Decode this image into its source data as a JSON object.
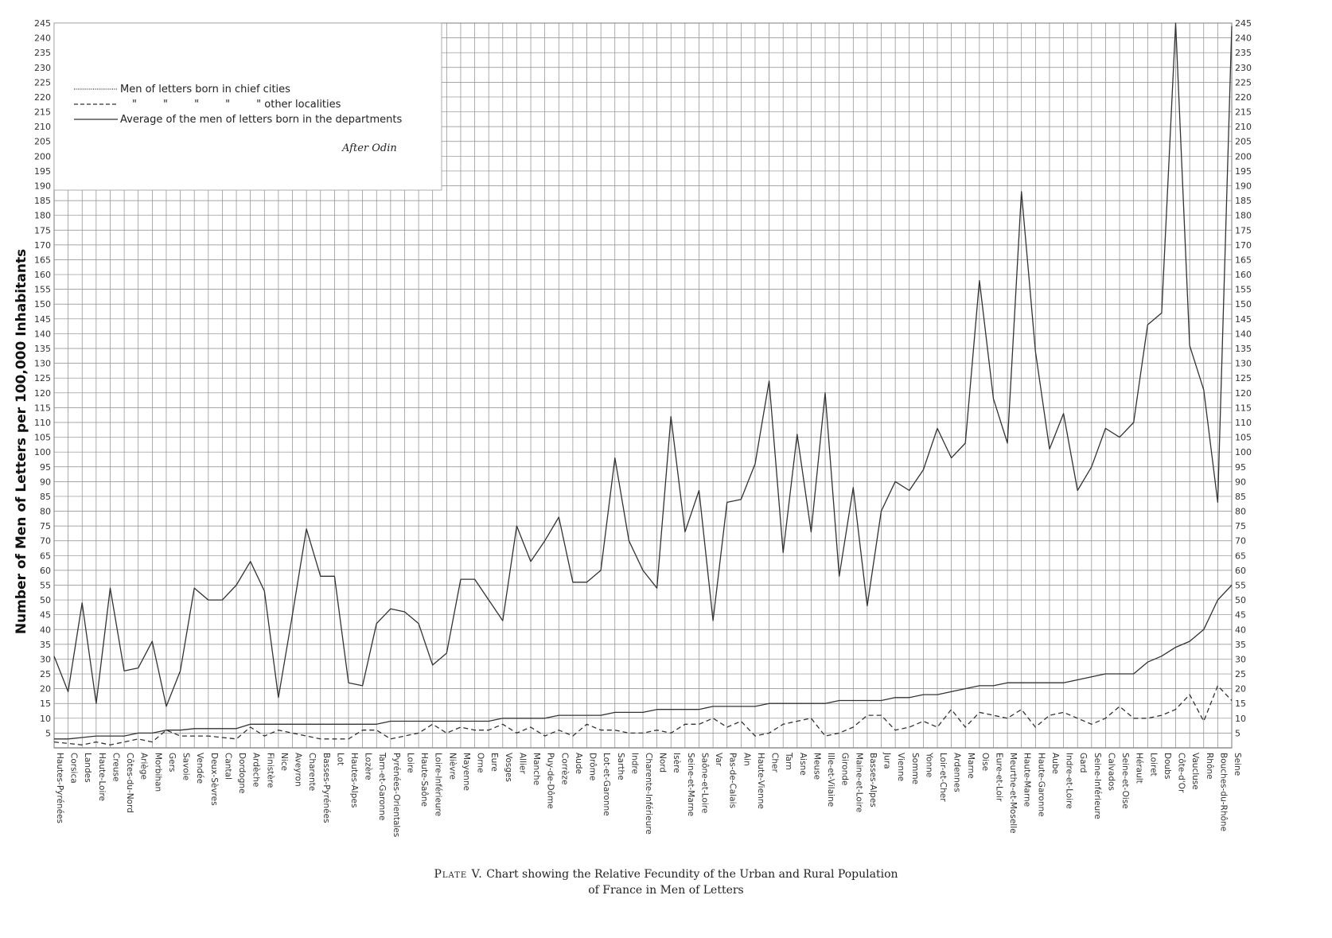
{
  "chart_data": {
    "type": "line",
    "ylabel": "Number of Men of Letters per 100,000 Inhabitants",
    "xlabel": "",
    "ylim": [
      0,
      245
    ],
    "yticks": [
      5,
      10,
      15,
      20,
      25,
      30,
      35,
      40,
      45,
      50,
      55,
      60,
      65,
      70,
      75,
      80,
      85,
      90,
      95,
      100,
      105,
      110,
      115,
      120,
      125,
      130,
      135,
      140,
      145,
      150,
      155,
      160,
      165,
      170,
      175,
      180,
      185,
      190,
      195,
      200,
      205,
      210,
      215,
      220,
      225,
      230,
      235,
      240,
      245
    ],
    "grid": true,
    "legend_position": "top-left",
    "annotation": "After Odin",
    "categories": [
      "Hautes-Pyrénées",
      "Corsica",
      "Landes",
      "Haute-Loire",
      "Creuse",
      "Côtes-du-Nord",
      "Ariège",
      "Morbihan",
      "Gers",
      "Savoie",
      "Vendée",
      "Deux-Sèvres",
      "Cantal",
      "Dordogne",
      "Ardèche",
      "Finistère",
      "Nice",
      "Aveyron",
      "Charente",
      "Basses-Pyrénées",
      "Lot",
      "Hautes-Alpes",
      "Lozère",
      "Tarn-et-Garonne",
      "Pyrénées-Orientales",
      "Loire",
      "Haute-Saône",
      "Loire-Inférieure",
      "Nièvre",
      "Mayenne",
      "Orne",
      "Eure",
      "Vosges",
      "Allier",
      "Manche",
      "Puy-de-Dôme",
      "Corrèze",
      "Aude",
      "Drôme",
      "Lot-et-Garonne",
      "Sarthe",
      "Indre",
      "Charente-Inférieure",
      "Nord",
      "Isère",
      "Seine-et-Marne",
      "Saône-et-Loire",
      "Var",
      "Pas-de-Calais",
      "Ain",
      "Haute-Vienne",
      "Cher",
      "Tarn",
      "Aisne",
      "Meuse",
      "Ille-et-Vilaine",
      "Gironde",
      "Maine-et-Loire",
      "Basses-Alpes",
      "Jura",
      "Vienne",
      "Somme",
      "Yonne",
      "Loir-et-Cher",
      "Ardennes",
      "Marne",
      "Oise",
      "Eure-et-Loir",
      "Meurthe-et-Moselle",
      "Haute-Marne",
      "Haute-Garonne",
      "Aube",
      "Indre-et-Loire",
      "Gard",
      "Seine-Inférieure",
      "Calvados",
      "Seine-et-Oise",
      "Hérault",
      "Loiret",
      "Doubs",
      "Côte-d'Or",
      "Vaucluse",
      "Rhône",
      "Bouches-du-Rhône",
      "Seine"
    ],
    "series": [
      {
        "name": "Men of letters born in chief cities",
        "style": "solid",
        "color": "#333333",
        "values": [
          31,
          19,
          49,
          15,
          54,
          26,
          27,
          36,
          14,
          26,
          54,
          50,
          50,
          55,
          63,
          53,
          17,
          45,
          74,
          58,
          58,
          22,
          21,
          42,
          47,
          46,
          42,
          28,
          32,
          57,
          57,
          50,
          43,
          75,
          63,
          70,
          78,
          56,
          56,
          60,
          98,
          70,
          60,
          54,
          112,
          73,
          87,
          43,
          83,
          84,
          96,
          124,
          66,
          106,
          73,
          120,
          58,
          88,
          48,
          80,
          90,
          87,
          94,
          108,
          98,
          103,
          158,
          118,
          103,
          188,
          134,
          101,
          113,
          87,
          95,
          108,
          105,
          110,
          143,
          147,
          245,
          136,
          121,
          83,
          244
        ]
      },
      {
        "name": "\"        \"        \"        \"        \" other localities",
        "style": "dashed",
        "color": "#333333",
        "values": [
          2,
          1.5,
          1,
          2,
          1,
          2,
          3,
          2,
          6,
          4,
          4,
          4,
          3.5,
          3,
          7,
          4,
          6,
          5,
          4,
          3,
          3,
          3,
          6,
          6,
          3,
          4,
          5,
          8,
          5,
          7,
          6,
          6,
          8,
          5,
          7,
          4,
          6,
          4,
          8,
          6,
          6,
          5,
          5,
          6,
          5,
          8,
          8,
          10,
          7,
          9,
          4,
          5,
          8,
          9,
          10,
          4,
          5,
          7,
          11,
          11,
          6,
          7,
          9,
          7,
          13,
          7,
          12,
          11,
          10,
          13,
          7,
          11,
          12,
          10,
          8,
          10,
          14,
          10,
          10,
          11,
          13,
          18,
          9,
          21,
          16
        ]
      },
      {
        "name": "Average of the men of letters born in the departments",
        "style": "solid",
        "color": "#333333",
        "values": [
          3,
          3,
          3.5,
          4,
          4,
          4,
          5,
          5,
          6,
          6,
          6.5,
          6.5,
          6.5,
          6.5,
          8,
          8,
          8,
          8,
          8,
          8,
          8,
          8,
          8,
          8,
          9,
          9,
          9,
          9,
          9,
          9,
          9,
          9,
          10,
          10,
          10,
          10,
          11,
          11,
          11,
          11,
          12,
          12,
          12,
          13,
          13,
          13,
          13,
          14,
          14,
          14,
          14,
          15,
          15,
          15,
          15,
          15,
          16,
          16,
          16,
          16,
          17,
          17,
          18,
          18,
          19,
          20,
          21,
          21,
          22,
          22,
          22,
          22,
          22,
          23,
          24,
          25,
          25,
          25,
          29,
          31,
          34,
          36,
          40,
          50,
          55
        ]
      }
    ]
  },
  "caption": {
    "plate": "Plate V.",
    "line1": "Chart showing the Relative Fecundity of the Urban and Rural Population",
    "line2": "of France in Men of Letters"
  }
}
